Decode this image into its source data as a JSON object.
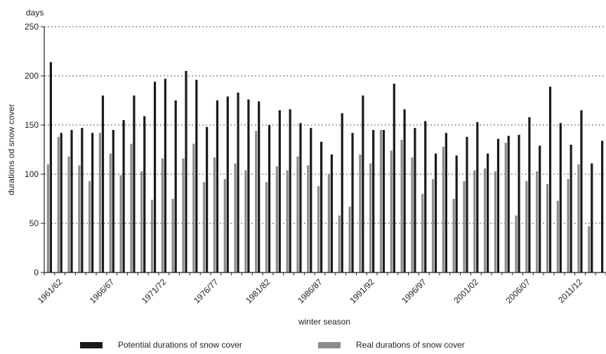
{
  "chart_data": {
    "type": "bar",
    "ylabel": "durations od snow cover",
    "yunit": "days",
    "xlabel": "winter season",
    "ylim": [
      0,
      250
    ],
    "yticks": [
      0,
      50,
      100,
      150,
      200,
      250
    ],
    "grid": "horizontal dotted",
    "legend_position": "bottom",
    "x_tick_labels": [
      "1961/62",
      "1966/67",
      "1971/72",
      "1976/77",
      "1981/82",
      "1986/87",
      "1991/92",
      "1996/97",
      "2001/02",
      "2006/07",
      "2011/12"
    ],
    "categories": [
      "1960/61",
      "1961/62",
      "1962/63",
      "1963/64",
      "1964/65",
      "1965/66",
      "1966/67",
      "1967/68",
      "1968/69",
      "1969/70",
      "1970/71",
      "1971/72",
      "1972/73",
      "1973/74",
      "1974/75",
      "1975/76",
      "1976/77",
      "1977/78",
      "1978/79",
      "1979/80",
      "1980/81",
      "1981/82",
      "1982/83",
      "1983/84",
      "1984/85",
      "1985/86",
      "1986/87",
      "1987/88",
      "1988/89",
      "1989/90",
      "1990/91",
      "1991/92",
      "1992/93",
      "1993/94",
      "1994/95",
      "1995/96",
      "1996/97",
      "1997/98",
      "1998/99",
      "1999/00",
      "2000/01",
      "2001/02",
      "2002/03",
      "2003/04",
      "2004/05",
      "2005/06",
      "2006/07",
      "2007/08",
      "2008/09",
      "2009/10",
      "2010/11",
      "2011/12",
      "2012/13",
      "2013/14"
    ],
    "series": [
      {
        "name": "Potential durations of snow cover",
        "color": "#1a1a1a",
        "values": [
          214,
          142,
          145,
          147,
          142,
          180,
          145,
          155,
          180,
          159,
          194,
          197,
          175,
          205,
          196,
          148,
          175,
          179,
          183,
          176,
          174,
          150,
          165,
          166,
          152,
          147,
          133,
          120,
          162,
          142,
          180,
          145,
          145,
          192,
          166,
          147,
          154,
          121,
          142,
          119,
          138,
          153,
          121,
          136,
          139,
          140,
          158,
          129,
          189,
          152,
          130,
          165,
          111,
          134
        ]
      },
      {
        "name": "Real durations of snow cover",
        "color": "#8c8c8c",
        "values": [
          110,
          138,
          118,
          109,
          93,
          142,
          121,
          99,
          131,
          103,
          74,
          116,
          75,
          116,
          131,
          92,
          117,
          95,
          111,
          104,
          144,
          92,
          108,
          104,
          118,
          109,
          88,
          100,
          58,
          67,
          120,
          111,
          145,
          124,
          135,
          117,
          80,
          95,
          128,
          75,
          93,
          104,
          106,
          103,
          132,
          58,
          93,
          103,
          90,
          73,
          95,
          110,
          47,
          0
        ]
      }
    ]
  }
}
